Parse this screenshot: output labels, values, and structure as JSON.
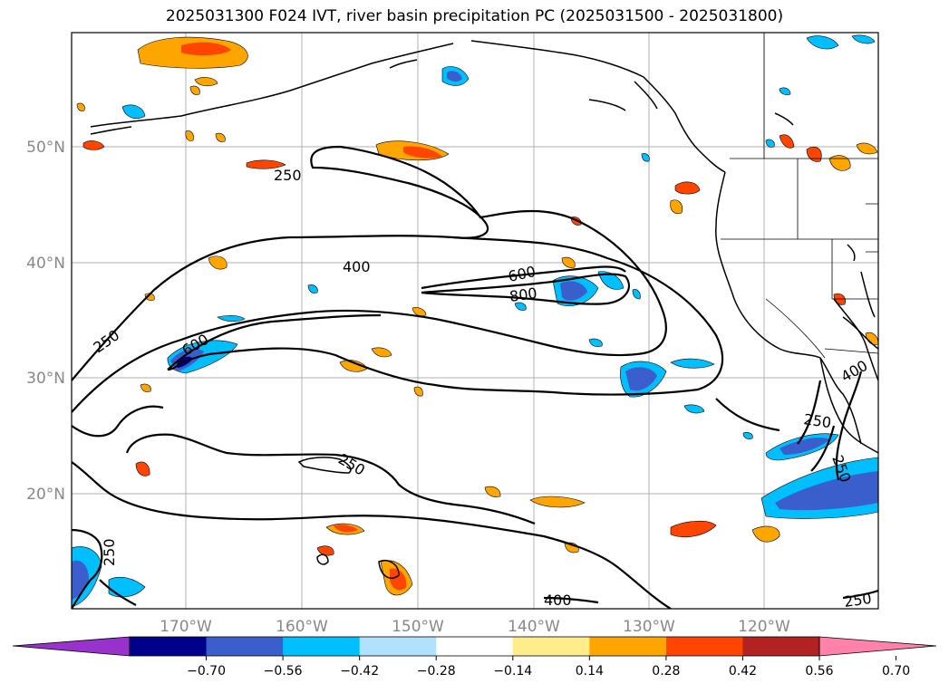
{
  "title": "2025031300 F024 IVT, river basin precipitation PC (2025031500 - 2025031800)",
  "lat_labels": [
    "50°N",
    "40°N",
    "30°N",
    "20°N"
  ],
  "lon_labels": [
    "170°W",
    "160°W",
    "150°W",
    "140°W",
    "130°W",
    "120°W"
  ],
  "contour_labels": [
    "250",
    "400",
    "600",
    "800",
    "250",
    "600",
    "250",
    "250",
    "400",
    "400",
    "250",
    "250",
    "250"
  ],
  "colorbar": {
    "ticks": [
      "−0.70",
      "−0.56",
      "−0.42",
      "−0.28",
      "−0.14",
      "0.14",
      "0.28",
      "0.42",
      "0.56",
      "0.70"
    ],
    "colors": [
      "#9932cc",
      "#00008b",
      "#3a5fcd",
      "#00bfff",
      "#b0e2ff",
      "#ffffff",
      "#ffec8b",
      "#ffa500",
      "#ff4500",
      "#b22222",
      "#ff82ab"
    ]
  }
}
